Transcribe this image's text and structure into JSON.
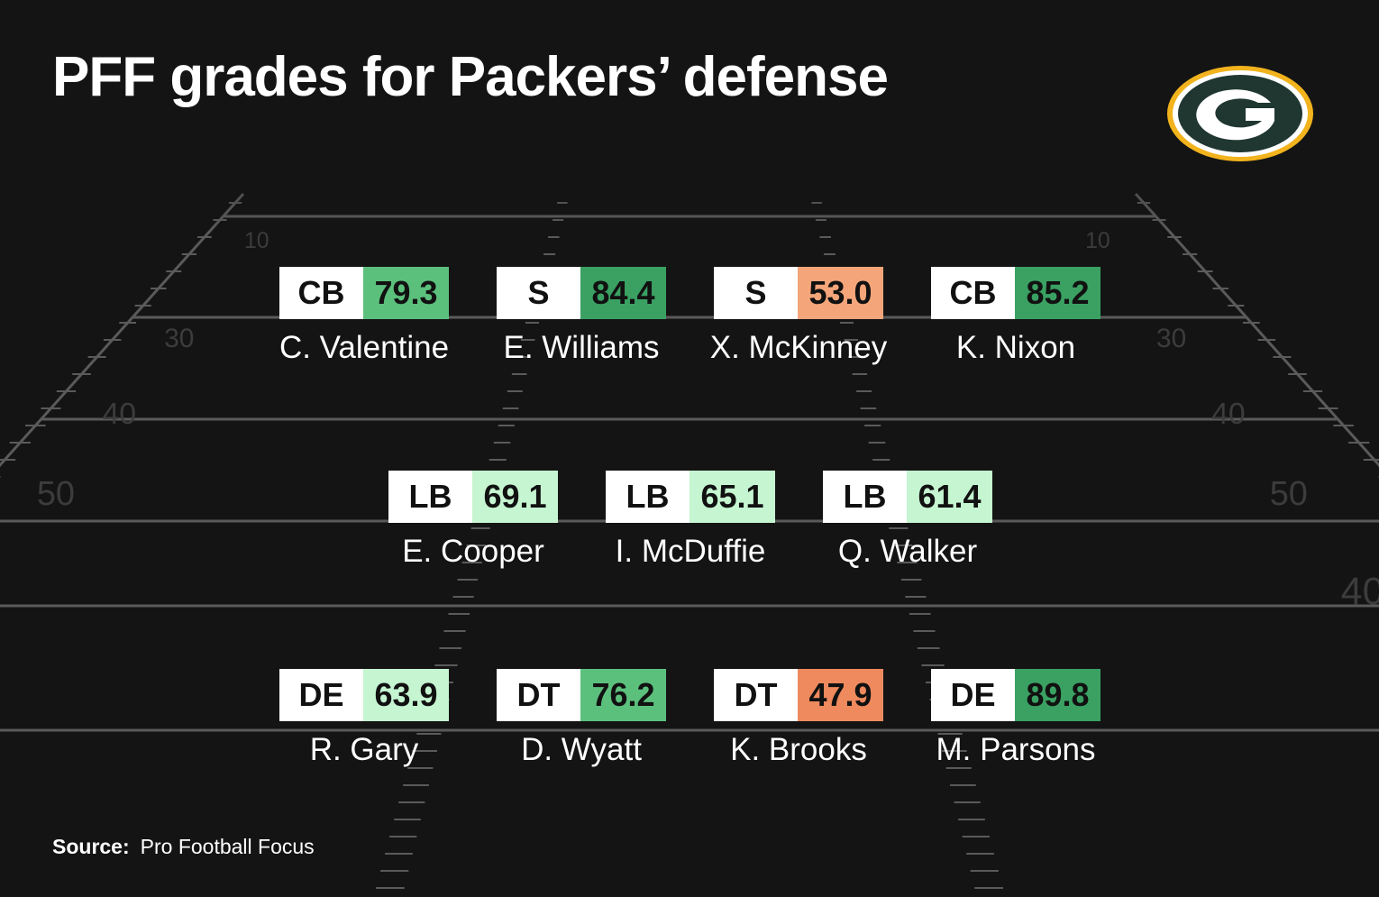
{
  "title": "PFF grades for Packers’ defense",
  "source": {
    "label": "Source:",
    "text": "Pro Football Focus"
  },
  "logo": {
    "icon": "packers-g-logo",
    "outer": "#f2b31d",
    "ring": "#ffffff",
    "inner": "#203731",
    "g": "#ffffff"
  },
  "grade_colors": {
    "dark_green": "#3aa163",
    "medium_green": "#5cc07d",
    "light_green": "#c5f5d1",
    "light_orange": "#f4a57a",
    "orange": "#ef8a5e"
  },
  "rows": [
    {
      "players": [
        {
          "position": "CB",
          "grade": "79.3",
          "name": "C. Valentine",
          "color": "#5cc07d"
        },
        {
          "position": "S",
          "grade": "84.4",
          "name": "E. Williams",
          "color": "#3aa163"
        },
        {
          "position": "S",
          "grade": "53.0",
          "name": "X. McKinney",
          "color": "#f4a57a"
        },
        {
          "position": "CB",
          "grade": "85.2",
          "name": "K. Nixon",
          "color": "#3aa163"
        }
      ]
    },
    {
      "players": [
        {
          "position": "LB",
          "grade": "69.1",
          "name": "E. Cooper",
          "color": "#c5f5d1"
        },
        {
          "position": "LB",
          "grade": "65.1",
          "name": "I. McDuffie",
          "color": "#c5f5d1"
        },
        {
          "position": "LB",
          "grade": "61.4",
          "name": "Q. Walker",
          "color": "#c5f5d1"
        }
      ]
    },
    {
      "players": [
        {
          "position": "DE",
          "grade": "63.9",
          "name": "R. Gary",
          "color": "#c5f5d1"
        },
        {
          "position": "DT",
          "grade": "76.2",
          "name": "D. Wyatt",
          "color": "#5cc07d"
        },
        {
          "position": "DT",
          "grade": "47.9",
          "name": "K. Brooks",
          "color": "#ef8a5e"
        },
        {
          "position": "DE",
          "grade": "89.8",
          "name": "M. Parsons",
          "color": "#3aa163"
        }
      ]
    }
  ]
}
